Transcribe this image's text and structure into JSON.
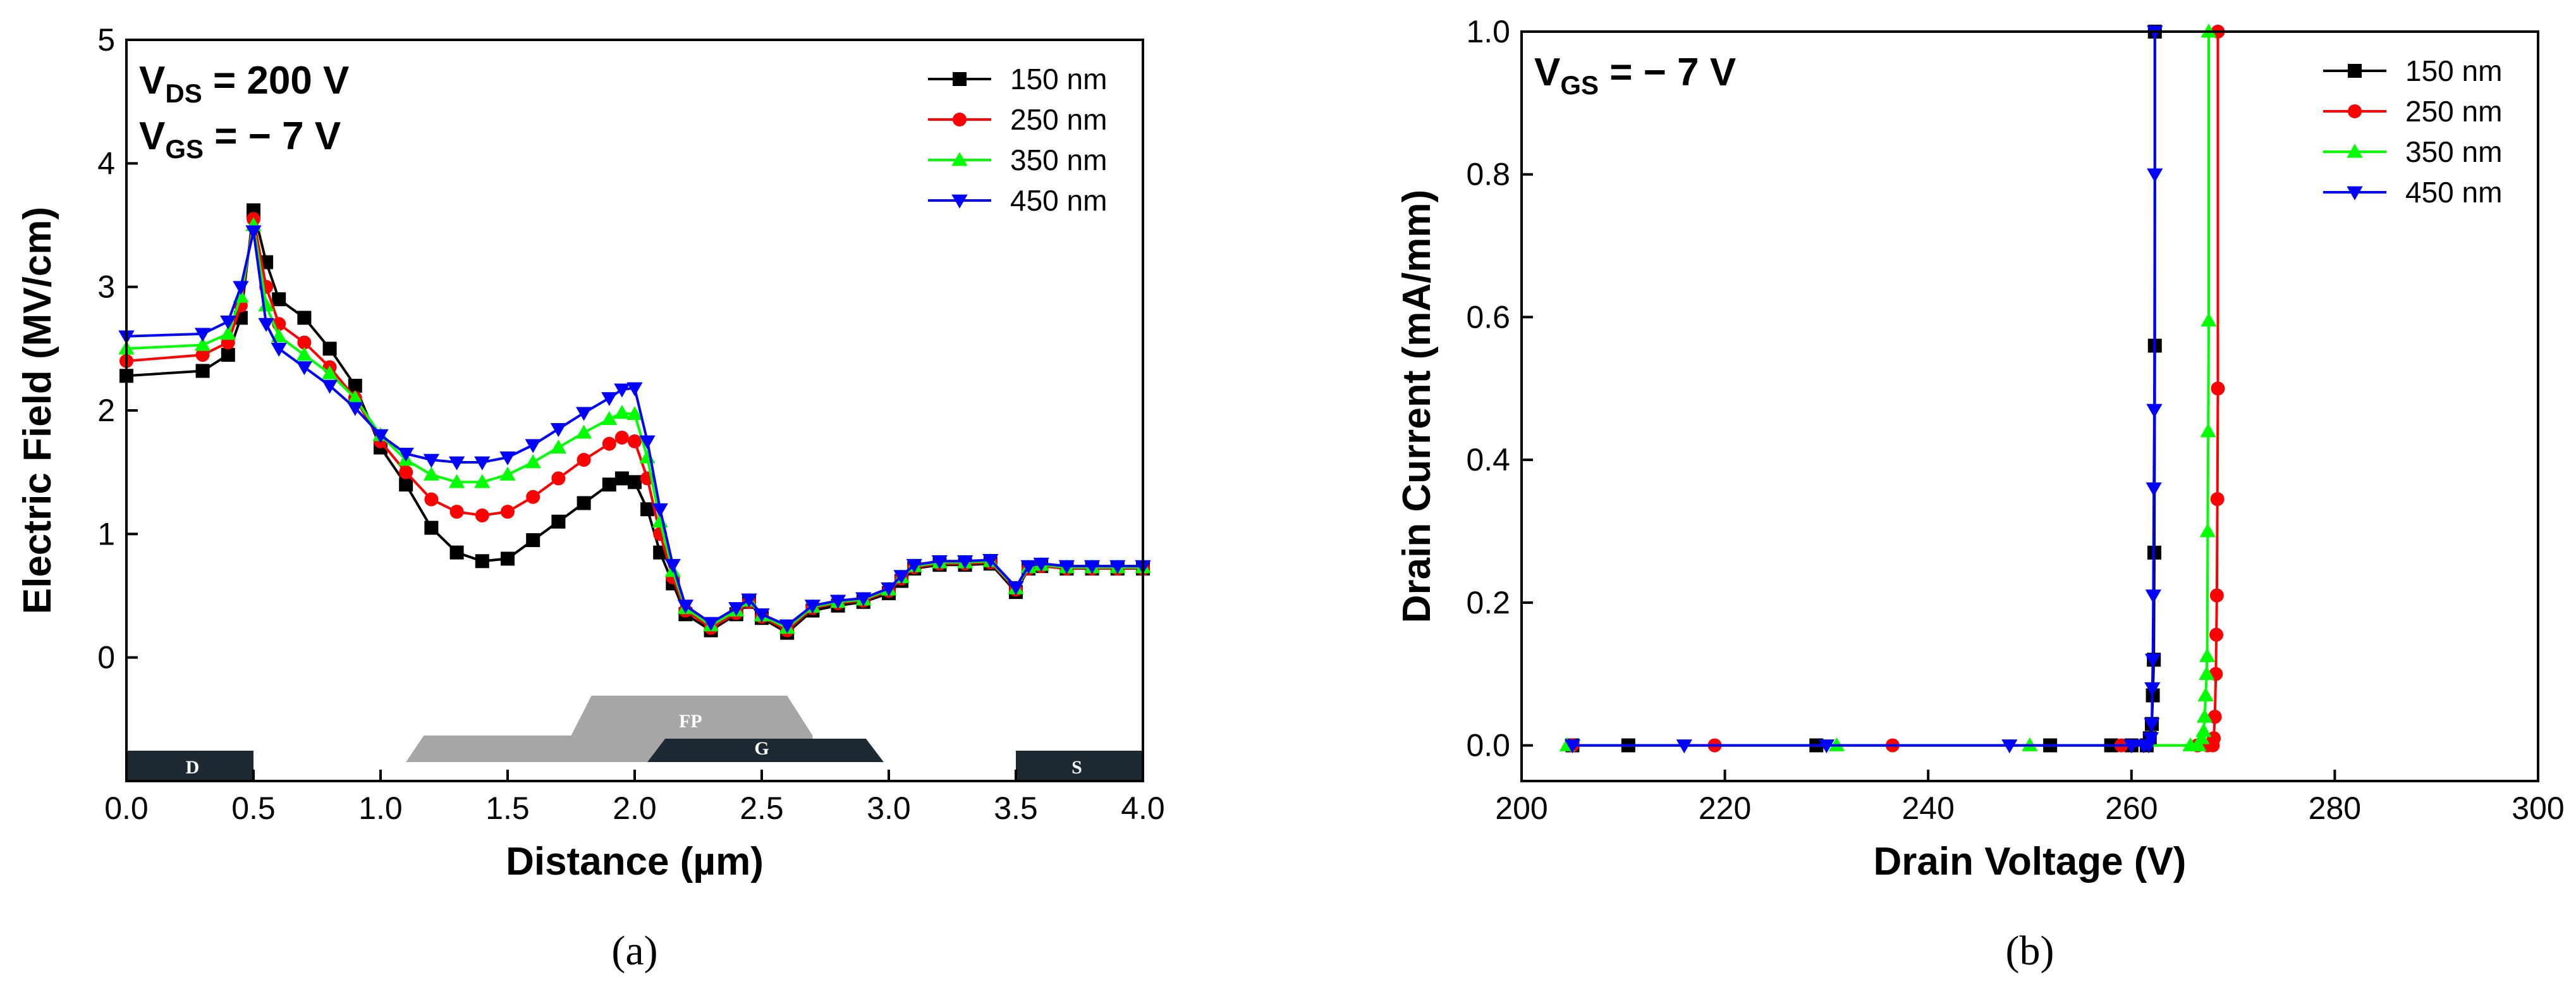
{
  "chart_data": [
    {
      "panel": "(a)",
      "type": "line",
      "xlabel": "Distance (µm)",
      "ylabel": "Electric Field (MV/cm)",
      "xlim": [
        0.0,
        4.0
      ],
      "ylim": [
        -1.0,
        5.0
      ],
      "xticks": [
        "0.0",
        "0.5",
        "1.0",
        "1.5",
        "2.0",
        "2.5",
        "3.0",
        "3.5",
        "4.0"
      ],
      "yticks": [
        "0",
        "1",
        "2",
        "3",
        "4",
        "5"
      ],
      "annotations": [
        {
          "main": "V",
          "sub": "DS",
          "rest": " = 200 V"
        },
        {
          "main": "V",
          "sub": "GS",
          "rest": " = − 7 V"
        }
      ],
      "legend_position": "top-right",
      "structure": {
        "labels": {
          "drain": "D",
          "gate": "G",
          "field_plate": "FP",
          "source": "S"
        },
        "drain_x": [
          0.0,
          0.5
        ],
        "gate_x": [
          2.05,
          2.98
        ],
        "source_x": [
          3.5,
          4.0
        ],
        "field_plate_x": [
          1.1,
          2.7
        ]
      },
      "series": [
        {
          "name": "150 nm",
          "color": "#000000",
          "marker": "square",
          "x": [
            0.0,
            0.3,
            0.4,
            0.45,
            0.5,
            0.55,
            0.6,
            0.7,
            0.8,
            0.9,
            1.0,
            1.1,
            1.2,
            1.3,
            1.4,
            1.5,
            1.6,
            1.7,
            1.8,
            1.9,
            1.95,
            2.0,
            2.05,
            2.1,
            2.15,
            2.2,
            2.3,
            2.4,
            2.45,
            2.5,
            2.6,
            2.7,
            2.8,
            2.9,
            3.0,
            3.05,
            3.1,
            3.2,
            3.3,
            3.4,
            3.5,
            3.55,
            3.6,
            3.7,
            3.8,
            3.9,
            4.0
          ],
          "y": [
            2.28,
            2.32,
            2.45,
            2.75,
            3.62,
            3.2,
            2.9,
            2.75,
            2.5,
            2.2,
            1.7,
            1.4,
            1.05,
            0.85,
            0.78,
            0.8,
            0.95,
            1.1,
            1.25,
            1.4,
            1.45,
            1.42,
            1.2,
            0.85,
            0.6,
            0.35,
            0.22,
            0.35,
            0.45,
            0.32,
            0.2,
            0.38,
            0.42,
            0.45,
            0.52,
            0.62,
            0.72,
            0.75,
            0.75,
            0.76,
            0.53,
            0.72,
            0.74,
            0.72,
            0.72,
            0.72,
            0.72
          ]
        },
        {
          "name": "250 nm",
          "color": "#ff0000",
          "marker": "circle",
          "x": [
            0.0,
            0.3,
            0.4,
            0.45,
            0.5,
            0.55,
            0.6,
            0.7,
            0.8,
            0.9,
            1.0,
            1.1,
            1.2,
            1.3,
            1.4,
            1.5,
            1.6,
            1.7,
            1.8,
            1.9,
            1.95,
            2.0,
            2.05,
            2.1,
            2.15,
            2.2,
            2.3,
            2.4,
            2.45,
            2.5,
            2.6,
            2.7,
            2.8,
            2.9,
            3.0,
            3.05,
            3.1,
            3.2,
            3.3,
            3.4,
            3.5,
            3.55,
            3.6,
            3.7,
            3.8,
            3.9,
            4.0
          ],
          "y": [
            2.4,
            2.45,
            2.55,
            2.85,
            3.55,
            3.0,
            2.7,
            2.55,
            2.35,
            2.1,
            1.75,
            1.5,
            1.28,
            1.18,
            1.15,
            1.18,
            1.3,
            1.45,
            1.6,
            1.73,
            1.78,
            1.75,
            1.45,
            1.0,
            0.65,
            0.38,
            0.24,
            0.36,
            0.45,
            0.33,
            0.22,
            0.4,
            0.44,
            0.46,
            0.54,
            0.64,
            0.73,
            0.76,
            0.76,
            0.77,
            0.55,
            0.72,
            0.74,
            0.72,
            0.72,
            0.72,
            0.72
          ]
        },
        {
          "name": "350 nm",
          "color": "#00ff00",
          "marker": "triangle-up",
          "x": [
            0.0,
            0.3,
            0.4,
            0.45,
            0.5,
            0.55,
            0.6,
            0.7,
            0.8,
            0.9,
            1.0,
            1.1,
            1.2,
            1.3,
            1.4,
            1.5,
            1.6,
            1.7,
            1.8,
            1.9,
            1.95,
            2.0,
            2.05,
            2.1,
            2.15,
            2.2,
            2.3,
            2.4,
            2.45,
            2.5,
            2.6,
            2.7,
            2.8,
            2.9,
            3.0,
            3.05,
            3.1,
            3.2,
            3.3,
            3.4,
            3.5,
            3.55,
            3.6,
            3.7,
            3.8,
            3.9,
            4.0
          ],
          "y": [
            2.5,
            2.53,
            2.62,
            2.92,
            3.5,
            2.85,
            2.6,
            2.45,
            2.3,
            2.1,
            1.8,
            1.6,
            1.48,
            1.42,
            1.42,
            1.48,
            1.58,
            1.7,
            1.82,
            1.93,
            1.98,
            1.97,
            1.62,
            1.1,
            0.7,
            0.4,
            0.26,
            0.38,
            0.46,
            0.34,
            0.24,
            0.41,
            0.45,
            0.47,
            0.55,
            0.65,
            0.74,
            0.77,
            0.77,
            0.78,
            0.56,
            0.73,
            0.75,
            0.73,
            0.73,
            0.73,
            0.73
          ]
        },
        {
          "name": "450 nm",
          "color": "#0000ff",
          "marker": "triangle-down",
          "x": [
            0.0,
            0.3,
            0.4,
            0.45,
            0.5,
            0.55,
            0.6,
            0.7,
            0.8,
            0.9,
            1.0,
            1.1,
            1.2,
            1.3,
            1.4,
            1.5,
            1.6,
            1.7,
            1.8,
            1.9,
            1.95,
            2.0,
            2.05,
            2.1,
            2.15,
            2.2,
            2.3,
            2.4,
            2.45,
            2.5,
            2.6,
            2.7,
            2.8,
            2.9,
            3.0,
            3.05,
            3.1,
            3.2,
            3.3,
            3.4,
            3.5,
            3.55,
            3.6,
            3.7,
            3.8,
            3.9,
            4.0
          ],
          "y": [
            2.6,
            2.62,
            2.72,
            3.0,
            3.45,
            2.7,
            2.5,
            2.35,
            2.2,
            2.02,
            1.8,
            1.65,
            1.6,
            1.58,
            1.58,
            1.62,
            1.72,
            1.85,
            1.98,
            2.1,
            2.17,
            2.18,
            1.75,
            1.2,
            0.75,
            0.42,
            0.28,
            0.4,
            0.47,
            0.35,
            0.26,
            0.42,
            0.46,
            0.48,
            0.56,
            0.66,
            0.75,
            0.78,
            0.78,
            0.79,
            0.57,
            0.74,
            0.76,
            0.74,
            0.74,
            0.74,
            0.74
          ]
        }
      ]
    },
    {
      "panel": "(b)",
      "type": "line",
      "xlabel": "Drain Voltage (V)",
      "ylabel": "Drain Current (mA/mm)",
      "xlim": [
        200,
        300
      ],
      "ylim": [
        -0.05,
        1.0
      ],
      "xticks": [
        "200",
        "220",
        "240",
        "260",
        "280",
        "300"
      ],
      "yticks": [
        "0.0",
        "0.2",
        "0.4",
        "0.6",
        "0.8",
        "1.0"
      ],
      "annotations": [
        {
          "main": "V",
          "sub": "GS",
          "rest": " = − 7 V"
        }
      ],
      "legend_position": "top-right",
      "series": [
        {
          "name": "150 nm",
          "color": "#000000",
          "marker": "square",
          "x": [
            205,
            210.5,
            229,
            252,
            258,
            260,
            261.5,
            261.8,
            262.0,
            262.1,
            262.2,
            262.25,
            262.3,
            262.3
          ],
          "y": [
            0,
            0,
            0,
            0,
            0,
            0,
            0.0,
            0.01,
            0.03,
            0.07,
            0.12,
            0.27,
            0.56,
            1.0
          ]
        },
        {
          "name": "250 nm",
          "color": "#ff0000",
          "marker": "circle",
          "x": [
            205,
            219,
            236.5,
            259,
            266.5,
            267.5,
            268.0,
            268.1,
            268.2,
            268.3,
            268.35,
            268.4,
            268.45,
            268.5,
            268.5
          ],
          "y": [
            0,
            0,
            0,
            0,
            0,
            0,
            0.0,
            0.01,
            0.04,
            0.1,
            0.155,
            0.21,
            0.345,
            0.5,
            1.0
          ]
        },
        {
          "name": "350 nm",
          "color": "#00ff00",
          "marker": "triangle-up",
          "x": [
            204.5,
            231,
            250,
            265.8,
            266.6,
            266.9,
            267.1,
            267.2,
            267.3,
            267.4,
            267.45,
            267.5,
            267.55,
            267.6,
            267.6
          ],
          "y": [
            0,
            0,
            0,
            0,
            0,
            0.01,
            0.02,
            0.04,
            0.07,
            0.1,
            0.125,
            0.3,
            0.44,
            0.595,
            1.0
          ]
        },
        {
          "name": "450 nm",
          "color": "#0000ff",
          "marker": "triangle-down",
          "x": [
            205,
            216,
            230,
            248,
            260,
            261.2,
            261.7,
            261.9,
            262.0,
            262.05,
            262.1,
            262.15,
            262.2,
            262.25,
            262.3,
            262.3
          ],
          "y": [
            0,
            0,
            0,
            0,
            0,
            0,
            0.0,
            0.01,
            0.03,
            0.08,
            0.12,
            0.21,
            0.36,
            0.47,
            0.8,
            1.0
          ]
        }
      ]
    }
  ]
}
